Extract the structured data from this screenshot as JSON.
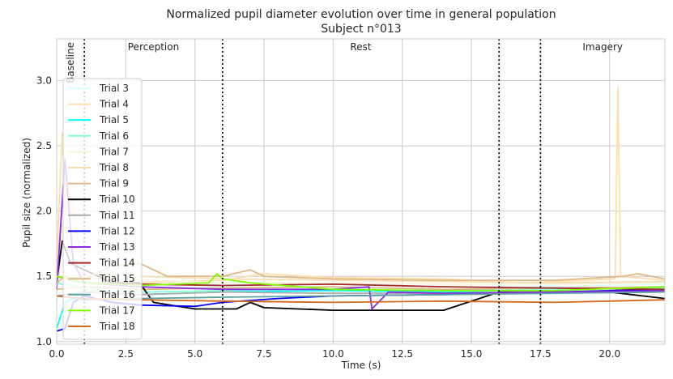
{
  "chart_data": {
    "type": "line",
    "title": "Normalized pupil diameter evolution over time in general population",
    "subtitle": "Subject n°013",
    "xlabel": "Time (s)",
    "ylabel": "Pupil size (normalized)",
    "xlim": [
      0,
      22
    ],
    "ylim": [
      0.98,
      3.32
    ],
    "xticks": [
      0.0,
      2.5,
      5.0,
      7.5,
      10.0,
      12.5,
      15.0,
      17.5,
      20.0
    ],
    "xtick_labels": [
      "0.0",
      "2.5",
      "5.0",
      "7.5",
      "10.0",
      "12.5",
      "15.0",
      "17.5",
      "20.0"
    ],
    "yticks": [
      1.0,
      1.5,
      2.0,
      2.5,
      3.0
    ],
    "ytick_labels": [
      "1.0",
      "1.5",
      "2.0",
      "2.5",
      "3.0"
    ],
    "grid": true,
    "legend_position": "left",
    "phase_lines": [
      1.0,
      6.0,
      16.0,
      17.5
    ],
    "phases": [
      {
        "label": "Baseline",
        "x": 0.5,
        "rotated": true
      },
      {
        "label": "Perception",
        "x": 3.5,
        "rotated": false
      },
      {
        "label": "Rest",
        "x": 11.0,
        "rotated": false
      },
      {
        "label": "Imagery",
        "x": 19.75,
        "rotated": false
      }
    ],
    "series": [
      {
        "name": "Trial 3",
        "color": "#e0ffff",
        "points": [
          [
            0,
            1.3
          ],
          [
            0.3,
            1.5
          ],
          [
            1,
            1.42
          ],
          [
            3,
            1.4
          ],
          [
            6,
            1.42
          ],
          [
            10,
            1.41
          ],
          [
            14,
            1.4
          ],
          [
            18,
            1.42
          ],
          [
            22,
            1.44
          ]
        ]
      },
      {
        "name": "Trial 4",
        "color": "#ffdead",
        "points": [
          [
            0,
            1.6
          ],
          [
            0.2,
            2.6
          ],
          [
            0.4,
            1.7
          ],
          [
            1,
            1.5
          ],
          [
            3,
            1.45
          ],
          [
            6,
            1.47
          ],
          [
            7.5,
            1.52
          ],
          [
            10,
            1.49
          ],
          [
            14,
            1.48
          ],
          [
            17,
            1.45
          ],
          [
            20.2,
            1.48
          ],
          [
            20.3,
            2.95
          ],
          [
            20.4,
            1.5
          ],
          [
            22,
            1.47
          ]
        ]
      },
      {
        "name": "Trial 5",
        "color": "#00ffff",
        "points": [
          [
            0,
            1.1
          ],
          [
            0.3,
            1.3
          ],
          [
            1,
            1.38
          ],
          [
            3,
            1.36
          ],
          [
            6,
            1.38
          ],
          [
            10,
            1.39
          ],
          [
            14,
            1.38
          ],
          [
            18,
            1.4
          ],
          [
            22,
            1.42
          ]
        ]
      },
      {
        "name": "Trial 6",
        "color": "#7fffd4",
        "points": [
          [
            0,
            1.45
          ],
          [
            1,
            1.4
          ],
          [
            3,
            1.38
          ],
          [
            6,
            1.39
          ],
          [
            10,
            1.4
          ],
          [
            14,
            1.39
          ],
          [
            18,
            1.4
          ],
          [
            22,
            1.41
          ]
        ]
      },
      {
        "name": "Trial 7",
        "color": "#f5f5dc",
        "points": [
          [
            0,
            1.5
          ],
          [
            0.5,
            2.2
          ],
          [
            1,
            1.5
          ],
          [
            3,
            1.47
          ],
          [
            6,
            1.45
          ],
          [
            10,
            1.45
          ],
          [
            14,
            1.44
          ],
          [
            18,
            1.44
          ],
          [
            22,
            1.45
          ]
        ]
      },
      {
        "name": "Trial 8",
        "color": "#f5deb3",
        "points": [
          [
            0,
            1.55
          ],
          [
            0.3,
            2.3
          ],
          [
            1,
            1.5
          ],
          [
            3,
            1.5
          ],
          [
            6,
            1.48
          ],
          [
            10,
            1.47
          ],
          [
            14,
            1.46
          ],
          [
            18,
            1.45
          ],
          [
            22,
            1.46
          ]
        ]
      },
      {
        "name": "Trial 9",
        "color": "#deb887",
        "points": [
          [
            0,
            1.4
          ],
          [
            1,
            1.42
          ],
          [
            3,
            1.4
          ],
          [
            6,
            1.41
          ],
          [
            10,
            1.42
          ],
          [
            14,
            1.4
          ],
          [
            18,
            1.41
          ],
          [
            22,
            1.42
          ]
        ]
      },
      {
        "name": "Trial 10",
        "color": "#000000",
        "points": [
          [
            0,
            1.45
          ],
          [
            0.2,
            1.77
          ],
          [
            0.5,
            1.6
          ],
          [
            1,
            1.55
          ],
          [
            1.5,
            1.5
          ],
          [
            2,
            1.45
          ],
          [
            3,
            1.45
          ],
          [
            3.5,
            1.3
          ],
          [
            5,
            1.25
          ],
          [
            6.5,
            1.25
          ],
          [
            7,
            1.3
          ],
          [
            7.5,
            1.26
          ],
          [
            10,
            1.24
          ],
          [
            12.5,
            1.24
          ],
          [
            14,
            1.24
          ],
          [
            16,
            1.38
          ],
          [
            20,
            1.38
          ],
          [
            22,
            1.33
          ]
        ]
      },
      {
        "name": "Trial 11",
        "color": "#a9a9a9",
        "points": [
          [
            0,
            1.35
          ],
          [
            1,
            1.38
          ],
          [
            3,
            1.36
          ],
          [
            6,
            1.38
          ],
          [
            10,
            1.37
          ],
          [
            14,
            1.37
          ],
          [
            18,
            1.38
          ],
          [
            22,
            1.39
          ]
        ]
      },
      {
        "name": "Trial 12",
        "color": "#0000ff",
        "points": [
          [
            0,
            1.08
          ],
          [
            0.3,
            1.1
          ],
          [
            0.6,
            1.3
          ],
          [
            1,
            1.35
          ],
          [
            2,
            1.3
          ],
          [
            3,
            1.28
          ],
          [
            5,
            1.27
          ],
          [
            6,
            1.3
          ],
          [
            8,
            1.33
          ],
          [
            10,
            1.35
          ],
          [
            14,
            1.36
          ],
          [
            18,
            1.38
          ],
          [
            22,
            1.4
          ]
        ]
      },
      {
        "name": "Trial 13",
        "color": "#8a2be2",
        "points": [
          [
            0,
            1.4
          ],
          [
            0.3,
            2.4
          ],
          [
            0.6,
            1.6
          ],
          [
            1,
            1.45
          ],
          [
            3,
            1.42
          ],
          [
            6,
            1.4
          ],
          [
            10,
            1.4
          ],
          [
            11.3,
            1.42
          ],
          [
            11.4,
            1.25
          ],
          [
            12,
            1.38
          ],
          [
            14,
            1.37
          ],
          [
            18,
            1.38
          ],
          [
            22,
            1.39
          ]
        ]
      },
      {
        "name": "Trial 14",
        "color": "#a52a2a",
        "points": [
          [
            0,
            1.5
          ],
          [
            1,
            1.45
          ],
          [
            3,
            1.44
          ],
          [
            6,
            1.43
          ],
          [
            10,
            1.44
          ],
          [
            14,
            1.42
          ],
          [
            18,
            1.41
          ],
          [
            22,
            1.4
          ]
        ]
      },
      {
        "name": "Trial 15",
        "color": "#deb887",
        "points": [
          [
            0,
            1.45
          ],
          [
            0.3,
            1.5
          ],
          [
            1,
            1.48
          ],
          [
            2,
            1.58
          ],
          [
            3,
            1.6
          ],
          [
            4,
            1.5
          ],
          [
            6,
            1.5
          ],
          [
            7,
            1.55
          ],
          [
            7.5,
            1.5
          ],
          [
            10,
            1.48
          ],
          [
            14,
            1.47
          ],
          [
            18,
            1.47
          ],
          [
            20.5,
            1.5
          ],
          [
            21,
            1.52
          ],
          [
            22,
            1.48
          ]
        ]
      },
      {
        "name": "Trial 16",
        "color": "#5f9ea0",
        "points": [
          [
            0,
            1.35
          ],
          [
            1,
            1.32
          ],
          [
            3,
            1.33
          ],
          [
            6,
            1.34
          ],
          [
            10,
            1.35
          ],
          [
            14,
            1.36
          ],
          [
            18,
            1.37
          ],
          [
            22,
            1.38
          ]
        ]
      },
      {
        "name": "Trial 17",
        "color": "#7fff00",
        "points": [
          [
            0,
            1.5
          ],
          [
            1,
            1.45
          ],
          [
            3,
            1.43
          ],
          [
            5.5,
            1.45
          ],
          [
            5.8,
            1.52
          ],
          [
            6,
            1.48
          ],
          [
            7,
            1.45
          ],
          [
            10,
            1.4
          ],
          [
            14,
            1.39
          ],
          [
            18,
            1.39
          ],
          [
            22,
            1.42
          ]
        ]
      },
      {
        "name": "Trial 18",
        "color": "#d2691e",
        "points": [
          [
            0,
            1.35
          ],
          [
            1,
            1.33
          ],
          [
            3,
            1.32
          ],
          [
            6,
            1.31
          ],
          [
            10,
            1.3
          ],
          [
            14,
            1.31
          ],
          [
            18,
            1.3
          ],
          [
            22,
            1.32
          ]
        ]
      }
    ]
  }
}
